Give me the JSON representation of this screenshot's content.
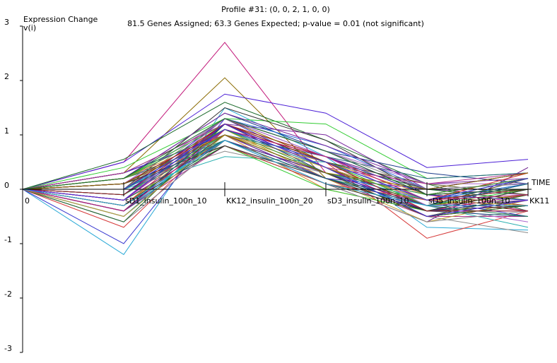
{
  "chart_data": {
    "type": "line",
    "title": "Profile #31: (0, 0, 2, 1, 0, 0)",
    "subtitle": "81.5 Genes Assigned; 63.3 Genes Expected; p-value = 0.01 (not significant)",
    "ylabel": "Expression Change",
    "ylabel_unit": "v(i)",
    "xlabel": "TIME",
    "ylim": [
      -3,
      3
    ],
    "yticks": [
      "3",
      "2",
      "1",
      "0",
      "-1",
      "-2",
      "-3"
    ],
    "categories": [
      "0",
      "sD1_insulin_100n_10",
      "KK12_insulin_100n_20",
      "sD3_insulin_100n_10",
      "sD5_insulin_100n_10",
      "KK11"
    ],
    "grid": false,
    "legend": "none",
    "series_count": 81,
    "series": [
      {
        "values": [
          0,
          0.5,
          2.7,
          0.3,
          -0.2,
          0.0
        ]
      },
      {
        "values": [
          0,
          0.3,
          2.05,
          0.2,
          -0.4,
          -0.3
        ]
      },
      {
        "values": [
          0,
          0.5,
          1.75,
          1.4,
          0.4,
          0.55
        ]
      },
      {
        "values": [
          0,
          0.55,
          1.6,
          0.9,
          0.1,
          -0.4
        ]
      },
      {
        "values": [
          0,
          -1.2,
          1.5,
          0.6,
          -0.7,
          -0.75
        ]
      },
      {
        "values": [
          0,
          -1.0,
          1.3,
          0.4,
          -0.3,
          0.2
        ]
      },
      {
        "values": [
          0,
          0.4,
          1.3,
          1.2,
          0.2,
          0.3
        ]
      },
      {
        "values": [
          0,
          0.2,
          1.2,
          1.0,
          0.0,
          -0.1
        ]
      },
      {
        "values": [
          0,
          -0.7,
          1.1,
          0.5,
          -0.9,
          -0.4
        ]
      },
      {
        "values": [
          0,
          0.0,
          0.6,
          0.5,
          -0.3,
          -0.7
        ]
      },
      {
        "values": [
          0,
          0.1,
          0.7,
          0.3,
          -0.5,
          -0.8
        ]
      },
      {
        "values": [
          0,
          -0.3,
          0.9,
          0.1,
          -0.6,
          0.4
        ]
      },
      {
        "values": [
          0,
          -0.5,
          1.0,
          0.0,
          -0.4,
          -0.2
        ]
      },
      {
        "values": [
          0,
          0.2,
          1.4,
          0.7,
          0.3,
          0.1
        ]
      },
      {
        "values": [
          0,
          -0.2,
          1.2,
          0.6,
          -0.1,
          -0.3
        ]
      },
      {
        "values": [
          0,
          0.1,
          1.1,
          0.4,
          -0.2,
          0.2
        ]
      },
      {
        "values": [
          0,
          -0.4,
          0.8,
          0.2,
          -0.5,
          -0.5
        ]
      },
      {
        "values": [
          0,
          0.3,
          1.0,
          0.5,
          0.1,
          -0.1
        ]
      },
      {
        "values": [
          0,
          -0.1,
          1.3,
          0.8,
          0.0,
          0.3
        ]
      },
      {
        "values": [
          0,
          -0.6,
          0.9,
          0.3,
          -0.3,
          -0.6
        ]
      },
      {
        "values": [
          0,
          0.0,
          1.5,
          0.9,
          -0.1,
          0.0
        ]
      },
      {
        "values": [
          0,
          -0.3,
          1.1,
          0.2,
          -0.6,
          -0.2
        ]
      },
      {
        "values": [
          0,
          0.2,
          0.8,
          0.1,
          -0.3,
          0.1
        ]
      },
      {
        "values": [
          0,
          -0.2,
          1.2,
          0.5,
          -0.2,
          -0.4
        ]
      },
      {
        "values": [
          0,
          0.1,
          1.0,
          0.6,
          0.2,
          0.3
        ]
      },
      {
        "values": [
          0,
          -0.5,
          1.1,
          0.4,
          -0.4,
          -0.1
        ]
      },
      {
        "values": [
          0,
          0.0,
          0.9,
          0.3,
          -0.5,
          -0.3
        ]
      },
      {
        "values": [
          0,
          -0.1,
          1.3,
          0.7,
          -0.1,
          0.2
        ]
      },
      {
        "values": [
          0,
          0.3,
          1.2,
          0.5,
          0.0,
          -0.2
        ]
      },
      {
        "values": [
          0,
          -0.4,
          1.0,
          0.2,
          -0.3,
          0.1
        ]
      },
      {
        "values": [
          0,
          0.1,
          1.1,
          0.4,
          -0.2,
          -0.5
        ]
      },
      {
        "values": [
          0,
          -0.2,
          0.8,
          0.0,
          -0.4,
          0.0
        ]
      },
      {
        "values": [
          0,
          0.2,
          1.4,
          0.8,
          0.1,
          0.2
        ]
      },
      {
        "values": [
          0,
          -0.3,
          1.2,
          0.3,
          -0.5,
          -0.3
        ]
      },
      {
        "values": [
          0,
          0.0,
          1.0,
          0.5,
          -0.2,
          0.1
        ]
      },
      {
        "values": [
          0,
          -0.6,
          0.9,
          0.1,
          -0.6,
          -0.4
        ]
      },
      {
        "values": [
          0,
          0.1,
          1.3,
          0.6,
          0.0,
          0.3
        ]
      },
      {
        "values": [
          0,
          -0.1,
          1.1,
          0.4,
          -0.3,
          -0.1
        ]
      },
      {
        "values": [
          0,
          0.3,
          1.0,
          0.3,
          -0.1,
          0.2
        ]
      },
      {
        "values": [
          0,
          -0.4,
          1.2,
          0.5,
          -0.4,
          -0.2
        ]
      },
      {
        "values": [
          0,
          0.2,
          0.9,
          0.2,
          -0.2,
          0.0
        ]
      },
      {
        "values": [
          0,
          -0.2,
          1.1,
          0.6,
          -0.1,
          -0.4
        ]
      },
      {
        "values": [
          0,
          0.0,
          1.2,
          0.4,
          -0.3,
          0.2
        ]
      },
      {
        "values": [
          0,
          -0.5,
          1.0,
          0.3,
          -0.5,
          -0.1
        ]
      },
      {
        "values": [
          0,
          0.1,
          1.3,
          0.7,
          0.1,
          0.1
        ]
      },
      {
        "values": [
          0,
          -0.3,
          0.8,
          0.1,
          -0.4,
          -0.3
        ]
      },
      {
        "values": [
          0,
          0.2,
          1.1,
          0.5,
          -0.2,
          0.3
        ]
      },
      {
        "values": [
          0,
          -0.1,
          1.0,
          0.2,
          -0.3,
          -0.2
        ]
      },
      {
        "values": [
          0,
          0.0,
          1.2,
          0.6,
          -0.1,
          0.0
        ]
      },
      {
        "values": [
          0,
          -0.4,
          0.9,
          0.3,
          -0.4,
          -0.5
        ]
      },
      {
        "values": [
          0,
          0.1,
          1.1,
          0.4,
          -0.2,
          0.2
        ]
      },
      {
        "values": [
          0,
          -0.2,
          1.3,
          0.5,
          -0.3,
          -0.1
        ]
      },
      {
        "values": [
          0,
          0.3,
          1.0,
          0.2,
          0.0,
          0.1
        ]
      },
      {
        "values": [
          0,
          -0.6,
          1.2,
          0.4,
          -0.5,
          -0.3
        ]
      },
      {
        "values": [
          0,
          0.0,
          0.9,
          0.3,
          -0.2,
          0.2
        ]
      },
      {
        "values": [
          0,
          -0.1,
          1.1,
          0.6,
          -0.1,
          -0.2
        ]
      },
      {
        "values": [
          0,
          0.2,
          1.2,
          0.5,
          -0.3,
          0.0
        ]
      },
      {
        "values": [
          0,
          -0.3,
          1.0,
          0.2,
          -0.4,
          -0.4
        ]
      },
      {
        "values": [
          0,
          0.1,
          0.8,
          0.1,
          -0.2,
          0.3
        ]
      },
      {
        "values": [
          0,
          -0.5,
          1.1,
          0.4,
          -0.5,
          -0.1
        ]
      },
      {
        "values": [
          0,
          0.0,
          1.3,
          0.7,
          0.0,
          0.1
        ]
      },
      {
        "values": [
          0,
          -0.2,
          0.9,
          0.3,
          -0.3,
          -0.3
        ]
      },
      {
        "values": [
          0,
          0.2,
          1.0,
          0.5,
          -0.1,
          0.2
        ]
      },
      {
        "values": [
          0,
          -0.4,
          1.2,
          0.3,
          -0.4,
          -0.2
        ]
      },
      {
        "values": [
          0,
          0.1,
          1.1,
          0.6,
          -0.2,
          0.0
        ]
      },
      {
        "values": [
          0,
          -0.1,
          0.9,
          0.2,
          -0.3,
          -0.5
        ]
      },
      {
        "values": [
          0,
          0.3,
          1.2,
          0.4,
          0.1,
          0.3
        ]
      },
      {
        "values": [
          0,
          -0.3,
          1.0,
          0.3,
          -0.5,
          -0.1
        ]
      },
      {
        "values": [
          0,
          0.0,
          1.1,
          0.5,
          -0.2,
          0.1
        ]
      },
      {
        "values": [
          0,
          -0.2,
          1.3,
          0.6,
          -0.3,
          -0.2
        ]
      },
      {
        "values": [
          0,
          0.1,
          0.8,
          0.2,
          -0.4,
          0.0
        ]
      },
      {
        "values": [
          0,
          -0.5,
          1.0,
          0.4,
          -0.2,
          -0.3
        ]
      },
      {
        "values": [
          0,
          0.2,
          1.1,
          0.3,
          -0.1,
          0.2
        ]
      },
      {
        "values": [
          0,
          -0.1,
          1.2,
          0.5,
          -0.4,
          -0.4
        ]
      },
      {
        "values": [
          0,
          0.0,
          0.9,
          0.2,
          -0.3,
          0.1
        ]
      },
      {
        "values": [
          0,
          -0.4,
          1.1,
          0.6,
          -0.2,
          -0.1
        ]
      },
      {
        "values": [
          0,
          0.1,
          1.0,
          0.3,
          0.0,
          0.3
        ]
      },
      {
        "values": [
          0,
          -0.2,
          1.2,
          0.4,
          -0.5,
          -0.2
        ]
      },
      {
        "values": [
          0,
          0.2,
          1.3,
          0.7,
          -0.1,
          0.0
        ]
      },
      {
        "values": [
          0,
          -0.3,
          0.9,
          0.1,
          -0.3,
          -0.3
        ]
      },
      {
        "values": [
          0,
          0.0,
          1.1,
          0.5,
          -0.2,
          0.2
        ]
      }
    ],
    "palette": [
      "#c2187a",
      "#8a6a00",
      "#4b1fd6",
      "#1b6a2a",
      "#2aa9d6",
      "#3a3ad0",
      "#33cc33",
      "#7a2aa0",
      "#d63a3a",
      "#2ab0b0",
      "#8a8a8a",
      "#6a1a8a",
      "#d68a2a",
      "#1a3a8a",
      "#9a2a2a",
      "#2a8a5a",
      "#b0308a",
      "#5a5a1a",
      "#2a6ad6",
      "#aa66cc",
      "#333333",
      "#c0a030",
      "#3a9a3a",
      "#a02020",
      "#206080"
    ]
  }
}
